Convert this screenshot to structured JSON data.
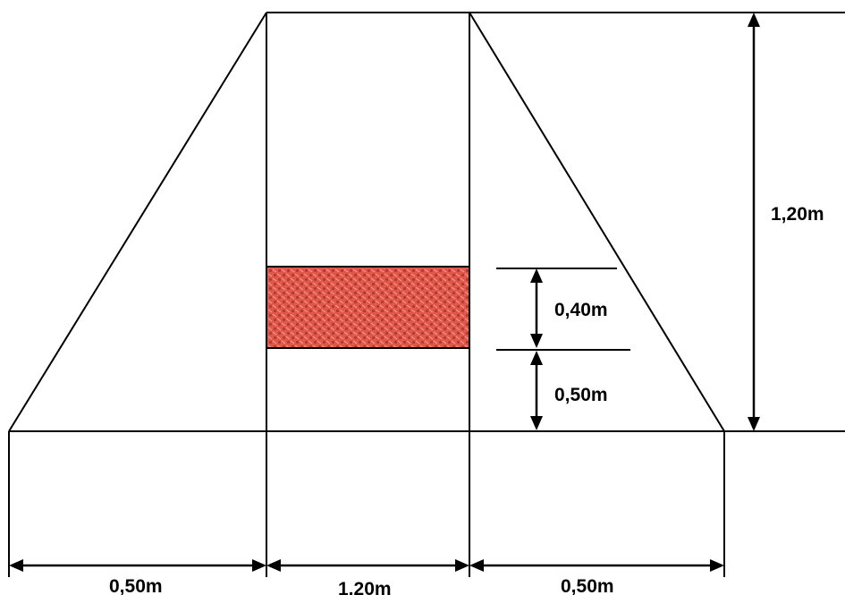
{
  "labels": {
    "total_height": "1,20m",
    "band_height": "0,40m",
    "band_offset": "0,50m",
    "left_width": "0,50m",
    "center_width": "1,20m",
    "right_width": "0,50m"
  },
  "colors": {
    "band_fill": "#e0584a",
    "band_pattern": "#b23a30",
    "line": "#000000"
  }
}
